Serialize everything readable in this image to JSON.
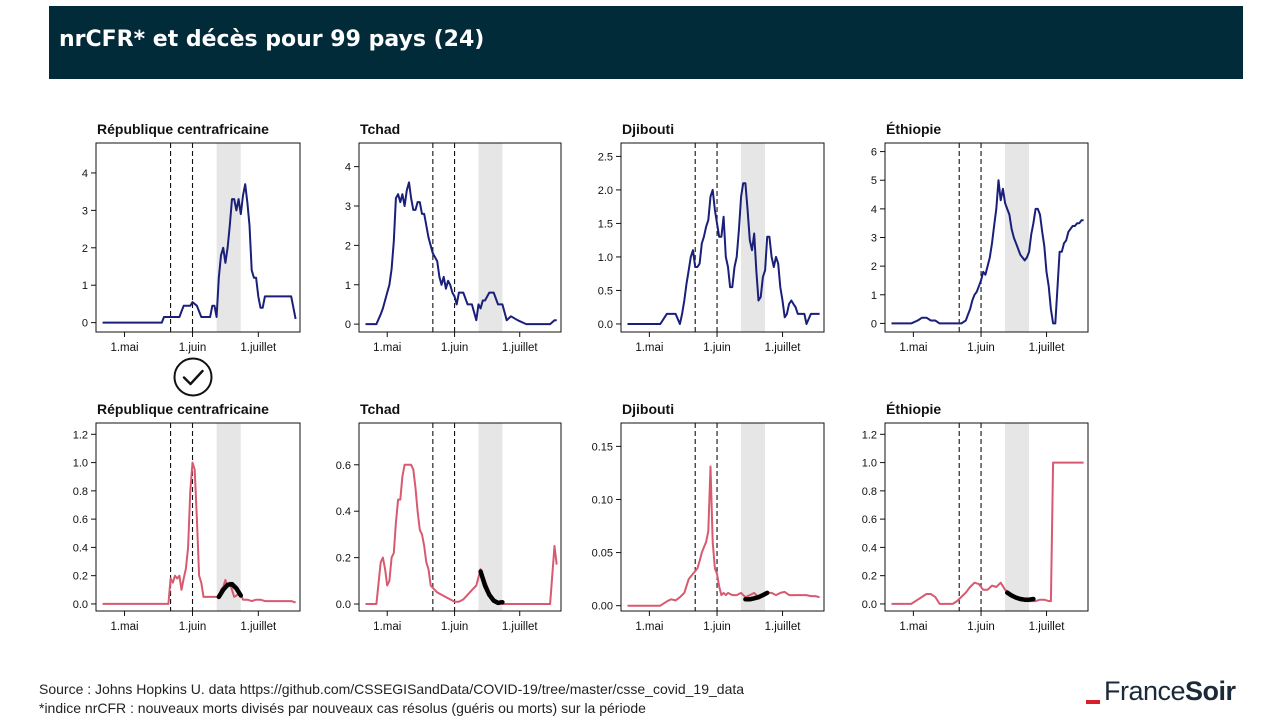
{
  "header": {
    "title": "nrCFR* et décès pour 99 pays (24)"
  },
  "footer": {
    "source": "Source : Johns Hopkins U. data https://github.com/CSSEGISandData/COVID-19/tree/master/csse_covid_19_data",
    "note": "*indice nrCFR : nouveaux morts divisés par nouveaux cas résolus (guéris ou morts) sur la période"
  },
  "logo": {
    "part1": "France",
    "part2": "Soir",
    "accent_color": "#d8202a"
  },
  "icons": {
    "check": "check-circle-icon"
  },
  "colors": {
    "deaths_line": "#1a1f7a",
    "nrcfr_line": "#d85a70",
    "trend_line": "#000000",
    "shade": "#e6e6e6",
    "header_bg": "#022b3a"
  },
  "chart_data": [
    {
      "type": "line",
      "title": "République centrafricaine",
      "metric": "deaths",
      "x": [
        0,
        3,
        6,
        9,
        12,
        15,
        18,
        21,
        24,
        27,
        28,
        30,
        31,
        33,
        34,
        35,
        36,
        37,
        38,
        40,
        41,
        43,
        45,
        47,
        48,
        49,
        50,
        51,
        52,
        53,
        54,
        55,
        56,
        57,
        58,
        59,
        60,
        61,
        62,
        63,
        64,
        65,
        66,
        67,
        68,
        69,
        70,
        71,
        72,
        73,
        74,
        75,
        76,
        77,
        78,
        80,
        83,
        86,
        88
      ],
      "y": [
        0,
        0,
        0,
        0,
        0,
        0,
        0,
        0,
        0,
        0,
        0.15,
        0.15,
        0.15,
        0.15,
        0.15,
        0.15,
        0.3,
        0.45,
        0.45,
        0.45,
        0.55,
        0.45,
        0.15,
        0.15,
        0.15,
        0.15,
        0.45,
        0.45,
        0.15,
        1.2,
        1.8,
        2.0,
        1.6,
        2.0,
        2.6,
        3.3,
        3.3,
        3.0,
        3.3,
        2.9,
        3.4,
        3.7,
        3.2,
        2.6,
        1.4,
        1.2,
        1.2,
        0.7,
        0.4,
        0.4,
        0.7,
        0.7,
        0.7,
        0.7,
        0.7,
        0.7,
        0.7,
        0.7,
        0.1
      ],
      "x_ticks": [
        "1.mai",
        "1.juin",
        "1.juillet"
      ],
      "tick_x": [
        10,
        41,
        71
      ],
      "y_ticks": [
        "0",
        "1",
        "2",
        "3",
        "4"
      ],
      "tick_y": [
        0,
        1,
        2,
        3,
        4
      ],
      "xlim": [
        -3,
        90
      ],
      "ylim": [
        -0.25,
        4.8
      ],
      "vlines": [
        31,
        41
      ],
      "shade": [
        52,
        63
      ]
    },
    {
      "type": "line",
      "title": "Tchad",
      "metric": "deaths",
      "x": [
        0,
        3,
        5,
        7,
        8,
        10,
        11,
        12,
        13,
        14,
        15,
        16,
        17,
        18,
        19,
        20,
        21,
        22,
        23,
        24,
        25,
        26,
        27,
        29,
        31,
        33,
        34,
        35,
        36,
        37,
        38,
        39,
        40,
        41,
        42,
        43,
        45,
        47,
        49,
        50,
        51,
        52,
        53,
        54,
        55,
        57,
        59,
        61,
        63,
        65,
        67,
        70,
        74,
        77,
        80,
        82,
        85,
        87,
        88
      ],
      "y": [
        0,
        0,
        0,
        0.25,
        0.4,
        0.8,
        1.0,
        1.4,
        2.1,
        3.2,
        3.3,
        3.1,
        3.3,
        3.0,
        3.4,
        3.6,
        3.2,
        2.9,
        2.9,
        3.1,
        3.1,
        2.8,
        2.8,
        2.2,
        1.8,
        1.6,
        1.2,
        1.0,
        1.2,
        0.9,
        1.1,
        1.0,
        0.8,
        0.7,
        0.5,
        0.8,
        0.8,
        0.5,
        0.5,
        0.3,
        0.1,
        0.5,
        0.4,
        0.6,
        0.6,
        0.8,
        0.8,
        0.5,
        0.5,
        0.1,
        0.2,
        0.1,
        0,
        0,
        0,
        0,
        0,
        0.1,
        0.1
      ],
      "x_ticks": [
        "1.mai",
        "1.juin",
        "1.juillet"
      ],
      "tick_x": [
        10,
        41,
        71
      ],
      "y_ticks": [
        "0",
        "1",
        "2",
        "3",
        "4"
      ],
      "tick_y": [
        0,
        1,
        2,
        3,
        4
      ],
      "xlim": [
        -3,
        90
      ],
      "ylim": [
        -0.2,
        4.6
      ],
      "vlines": [
        31,
        41
      ],
      "shade": [
        52,
        63
      ]
    },
    {
      "type": "line",
      "title": "Djibouti",
      "metric": "deaths",
      "x": [
        0,
        3,
        6,
        9,
        12,
        15,
        18,
        20,
        22,
        24,
        25,
        26,
        27,
        28,
        29,
        30,
        31,
        32,
        33,
        34,
        35,
        36,
        37,
        38,
        39,
        40,
        41,
        42,
        43,
        44,
        45,
        46,
        47,
        48,
        49,
        50,
        51,
        52,
        53,
        54,
        55,
        56,
        57,
        58,
        59,
        60,
        61,
        62,
        63,
        64,
        65,
        66,
        67,
        68,
        69,
        70,
        71,
        72,
        73,
        74,
        75,
        76,
        77,
        78,
        79,
        80,
        81,
        82,
        84,
        86,
        88
      ],
      "y": [
        0,
        0,
        0,
        0,
        0,
        0,
        0.15,
        0.15,
        0.15,
        0,
        0.15,
        0.35,
        0.6,
        0.8,
        1.0,
        1.1,
        0.85,
        0.85,
        0.9,
        1.2,
        1.3,
        1.45,
        1.55,
        1.9,
        2.0,
        1.7,
        1.5,
        1.3,
        1.3,
        1.6,
        1.0,
        0.85,
        0.55,
        0.55,
        0.85,
        1.0,
        1.4,
        1.9,
        2.1,
        2.1,
        1.7,
        1.25,
        1.1,
        1.35,
        0.8,
        0.35,
        0.4,
        0.7,
        0.8,
        1.3,
        1.3,
        1.0,
        0.85,
        1.0,
        0.9,
        0.55,
        0.35,
        0.1,
        0.15,
        0.3,
        0.35,
        0.3,
        0.25,
        0.15,
        0.15,
        0.15,
        0.15,
        0,
        0.15,
        0.15,
        0.15
      ],
      "x_ticks": [
        "1.mai",
        "1.juin",
        "1.juillet"
      ],
      "tick_x": [
        10,
        41,
        71
      ],
      "y_ticks": [
        "0.0",
        "0.5",
        "1.0",
        "1.5",
        "2.0",
        "2.5"
      ],
      "tick_y": [
        0,
        0.5,
        1,
        1.5,
        2,
        2.5
      ],
      "xlim": [
        -3,
        90
      ],
      "ylim": [
        -0.12,
        2.7
      ],
      "vlines": [
        31,
        41
      ],
      "shade": [
        52,
        63
      ]
    },
    {
      "type": "line",
      "title": "Éthiopie",
      "metric": "deaths",
      "x": [
        0,
        3,
        6,
        9,
        12,
        14,
        16,
        18,
        20,
        22,
        24,
        26,
        28,
        30,
        32,
        34,
        35,
        36,
        37,
        38,
        39,
        40,
        41,
        42,
        43,
        44,
        45,
        46,
        47,
        48,
        49,
        50,
        51,
        52,
        53,
        54,
        55,
        56,
        57,
        58,
        59,
        60,
        61,
        62,
        63,
        64,
        65,
        66,
        67,
        68,
        69,
        70,
        71,
        72,
        73,
        74,
        75,
        76,
        77,
        78,
        79,
        80,
        81,
        82,
        83,
        84,
        85,
        86,
        87,
        88
      ],
      "y": [
        0,
        0,
        0,
        0,
        0.1,
        0.2,
        0.2,
        0.1,
        0.1,
        0,
        0,
        0,
        0,
        0,
        0,
        0.1,
        0.3,
        0.5,
        0.8,
        1.0,
        1.1,
        1.3,
        1.5,
        1.8,
        1.7,
        2.0,
        2.3,
        2.8,
        3.4,
        4.0,
        5.0,
        4.3,
        4.7,
        4.2,
        4.0,
        3.8,
        3.3,
        3.0,
        2.8,
        2.6,
        2.4,
        2.3,
        2.2,
        2.3,
        2.5,
        3.1,
        3.5,
        4.0,
        4.0,
        3.8,
        3.2,
        2.7,
        1.8,
        1.3,
        0.5,
        0,
        0,
        1.2,
        2.5,
        2.5,
        2.8,
        2.9,
        3.2,
        3.3,
        3.4,
        3.4,
        3.5,
        3.5,
        3.6,
        3.6
      ],
      "x_ticks": [
        "1.mai",
        "1.juin",
        "1.juillet"
      ],
      "tick_x": [
        10,
        41,
        71
      ],
      "y_ticks": [
        "0",
        "1",
        "2",
        "3",
        "4",
        "5",
        "6"
      ],
      "tick_y": [
        0,
        1,
        2,
        3,
        4,
        5,
        6
      ],
      "xlim": [
        -3,
        90
      ],
      "ylim": [
        -0.3,
        6.3
      ],
      "vlines": [
        31,
        41
      ],
      "shade": [
        52,
        63
      ]
    },
    {
      "type": "line",
      "title": "République centrafricaine",
      "metric": "nrCFR",
      "checked": true,
      "x": [
        0,
        3,
        6,
        9,
        12,
        15,
        18,
        21,
        24,
        27,
        29,
        30,
        31,
        32,
        33,
        34,
        35,
        36,
        37,
        38,
        39,
        40,
        41,
        42,
        43,
        44,
        45,
        46,
        47,
        48,
        50,
        52,
        53,
        54,
        55,
        56,
        57,
        58,
        59,
        60,
        61,
        62,
        63,
        64,
        66,
        68,
        70,
        72,
        74,
        76,
        78,
        80,
        82,
        84,
        86,
        88
      ],
      "y": [
        0,
        0,
        0,
        0,
        0,
        0,
        0,
        0,
        0,
        0,
        0,
        0,
        0.18,
        0.15,
        0.2,
        0.18,
        0.2,
        0.1,
        0.18,
        0.25,
        0.4,
        0.8,
        1.0,
        0.95,
        0.6,
        0.2,
        0.15,
        0.05,
        0.05,
        0.05,
        0.05,
        0.05,
        0.05,
        0.1,
        0.12,
        0.17,
        0.12,
        0.15,
        0.1,
        0.05,
        0.06,
        0.07,
        0.07,
        0.03,
        0.03,
        0.02,
        0.03,
        0.03,
        0.02,
        0.02,
        0.02,
        0.02,
        0.02,
        0.02,
        0.02,
        0.01
      ],
      "trend_x": [
        53,
        55,
        57,
        59,
        61,
        63
      ],
      "trend_y": [
        0.05,
        0.1,
        0.135,
        0.14,
        0.11,
        0.06
      ],
      "x_ticks": [
        "1.mai",
        "1.juin",
        "1.juillet"
      ],
      "tick_x": [
        10,
        41,
        71
      ],
      "y_ticks": [
        "0.0",
        "0.2",
        "0.4",
        "0.6",
        "0.8",
        "1.0",
        "1.2"
      ],
      "tick_y": [
        0,
        0.2,
        0.4,
        0.6,
        0.8,
        1.0,
        1.2
      ],
      "xlim": [
        -3,
        90
      ],
      "ylim": [
        -0.05,
        1.28
      ],
      "vlines": [
        31,
        41
      ],
      "shade": [
        52,
        63
      ]
    },
    {
      "type": "line",
      "title": "Tchad",
      "metric": "nrCFR",
      "x": [
        0,
        3,
        5,
        7,
        8,
        9,
        10,
        11,
        12,
        13,
        14,
        15,
        16,
        17,
        18,
        19,
        20,
        21,
        22,
        23,
        24,
        25,
        26,
        27,
        28,
        29,
        30,
        31,
        33,
        35,
        37,
        39,
        41,
        43,
        45,
        47,
        49,
        51,
        53,
        55,
        57,
        59,
        61,
        63,
        65,
        67,
        69,
        71,
        73,
        75,
        77,
        79,
        81,
        83,
        85,
        87,
        88
      ],
      "y": [
        0,
        0,
        0,
        0.18,
        0.2,
        0.15,
        0.08,
        0.1,
        0.2,
        0.22,
        0.35,
        0.45,
        0.45,
        0.55,
        0.6,
        0.6,
        0.6,
        0.6,
        0.58,
        0.5,
        0.4,
        0.32,
        0.3,
        0.25,
        0.18,
        0.15,
        0.08,
        0.07,
        0.05,
        0.04,
        0.03,
        0.02,
        0.01,
        0.01,
        0.02,
        0.04,
        0.06,
        0.08,
        0.15,
        0.1,
        0.05,
        0.02,
        0.01,
        0,
        0,
        0,
        0,
        0,
        0,
        0,
        0,
        0,
        0,
        0,
        0,
        0.25,
        0.17
      ],
      "trend_x": [
        53,
        55,
        57,
        59,
        61,
        63
      ],
      "trend_y": [
        0.14,
        0.08,
        0.04,
        0.015,
        0.005,
        0.008
      ],
      "x_ticks": [
        "1.mai",
        "1.juin",
        "1.juillet"
      ],
      "tick_x": [
        10,
        41,
        71
      ],
      "y_ticks": [
        "0.0",
        "0.2",
        "0.4",
        "0.6"
      ],
      "tick_y": [
        0,
        0.2,
        0.4,
        0.6
      ],
      "xlim": [
        -3,
        90
      ],
      "ylim": [
        -0.03,
        0.78
      ],
      "vlines": [
        31,
        41
      ],
      "shade": [
        52,
        63
      ]
    },
    {
      "type": "line",
      "title": "Djibouti",
      "metric": "nrCFR",
      "x": [
        0,
        3,
        6,
        9,
        12,
        15,
        18,
        20,
        22,
        24,
        26,
        28,
        30,
        32,
        33,
        34,
        35,
        36,
        37,
        38,
        39,
        40,
        41,
        42,
        43,
        44,
        45,
        46,
        48,
        50,
        52,
        54,
        56,
        58,
        60,
        62,
        64,
        66,
        68,
        70,
        72,
        74,
        76,
        78,
        80,
        82,
        84,
        86,
        88
      ],
      "y": [
        0,
        0,
        0,
        0,
        0,
        0,
        0.004,
        0.006,
        0.005,
        0.008,
        0.012,
        0.025,
        0.03,
        0.035,
        0.042,
        0.05,
        0.055,
        0.06,
        0.07,
        0.131,
        0.06,
        0.035,
        0.03,
        0.018,
        0.01,
        0.012,
        0.01,
        0.012,
        0.01,
        0.01,
        0.012,
        0.008,
        0.01,
        0.012,
        0.008,
        0.01,
        0.012,
        0.012,
        0.01,
        0.012,
        0.013,
        0.01,
        0.01,
        0.01,
        0.01,
        0.01,
        0.009,
        0.009,
        0.008
      ],
      "trend_x": [
        54,
        56,
        58,
        60,
        62,
        64
      ],
      "trend_y": [
        0.006,
        0.006,
        0.007,
        0.008,
        0.01,
        0.012
      ],
      "x_ticks": [
        "1.mai",
        "1.juin",
        "1.juillet"
      ],
      "tick_x": [
        10,
        41,
        71
      ],
      "y_ticks": [
        "0.00",
        "0.05",
        "0.10",
        "0.15"
      ],
      "tick_y": [
        0,
        0.05,
        0.1,
        0.15
      ],
      "xlim": [
        -3,
        90
      ],
      "ylim": [
        -0.005,
        0.172
      ],
      "vlines": [
        31,
        41
      ],
      "shade": [
        52,
        63
      ]
    },
    {
      "type": "line",
      "title": "Éthiopie",
      "metric": "nrCFR",
      "x": [
        0,
        3,
        6,
        9,
        12,
        14,
        16,
        18,
        20,
        22,
        24,
        26,
        28,
        30,
        32,
        34,
        36,
        38,
        40,
        42,
        44,
        46,
        48,
        50,
        52,
        54,
        56,
        58,
        60,
        62,
        64,
        66,
        68,
        70,
        72,
        73,
        74,
        75,
        77,
        79,
        81,
        83,
        85,
        86,
        87,
        88
      ],
      "y": [
        0,
        0,
        0,
        0,
        0.03,
        0.05,
        0.07,
        0.07,
        0.05,
        0,
        0,
        0,
        0,
        0.02,
        0.05,
        0.08,
        0.12,
        0.15,
        0.14,
        0.1,
        0.1,
        0.13,
        0.12,
        0.15,
        0.1,
        0.08,
        0.06,
        0.04,
        0.03,
        0.02,
        0.02,
        0.02,
        0.03,
        0.03,
        0.02,
        0.02,
        1.0,
        1.0,
        1.0,
        1.0,
        1.0,
        1.0,
        1.0,
        1.0,
        1.0,
        1.0
      ],
      "trend_x": [
        53,
        55,
        57,
        59,
        61,
        63,
        65
      ],
      "trend_y": [
        0.08,
        0.06,
        0.045,
        0.035,
        0.03,
        0.03,
        0.035
      ],
      "x_ticks": [
        "1.mai",
        "1.juin",
        "1.juillet"
      ],
      "tick_x": [
        10,
        41,
        71
      ],
      "y_ticks": [
        "0.0",
        "0.2",
        "0.4",
        "0.6",
        "0.8",
        "1.0",
        "1.2"
      ],
      "tick_y": [
        0,
        0.2,
        0.4,
        0.6,
        0.8,
        1.0,
        1.2
      ],
      "xlim": [
        -3,
        90
      ],
      "ylim": [
        -0.05,
        1.28
      ],
      "vlines": [
        31,
        41
      ],
      "shade": [
        52,
        63
      ]
    }
  ]
}
